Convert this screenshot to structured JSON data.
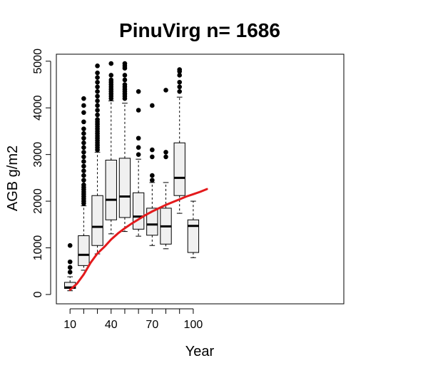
{
  "chart_data": {
    "type": "boxplot",
    "title": "PinuVirg n= 1686",
    "xlabel": "Year",
    "ylabel": "AGB g/m2",
    "xlim": [
      0,
      210
    ],
    "ylim": [
      -200,
      5150
    ],
    "x_ticks": [
      10,
      20,
      30,
      40,
      50,
      60,
      70,
      80,
      90,
      100
    ],
    "x_tick_labels": [
      "10",
      "",
      "",
      "40",
      "",
      "",
      "70",
      "",
      "",
      "100"
    ],
    "y_ticks": [
      0,
      1000,
      2000,
      3000,
      4000,
      5000
    ],
    "y_tick_labels": [
      "0",
      "1000",
      "2000",
      "3000",
      "4000",
      "5000"
    ],
    "boxes": [
      {
        "x": 10,
        "whisker_low": 80,
        "q1": 130,
        "median": 150,
        "q3": 260,
        "whisker_high": 380,
        "outliers": [
          480,
          580,
          700,
          1050
        ]
      },
      {
        "x": 20,
        "whisker_low": 520,
        "q1": 620,
        "median": 850,
        "q3": 1260,
        "whisker_high": 1900,
        "outliers": [
          1950,
          2000,
          2050,
          2100,
          2150,
          2200,
          2250,
          2300,
          2350,
          2450,
          2550,
          2650,
          2750,
          2850,
          2950,
          3050,
          3150,
          3250,
          3350,
          3450,
          3550,
          3700,
          3900,
          4050,
          4200
        ]
      },
      {
        "x": 30,
        "whisker_low": 870,
        "q1": 1050,
        "median": 1450,
        "q3": 2120,
        "whisker_high": 3050,
        "outliers": [
          3100,
          3150,
          3200,
          3250,
          3300,
          3350,
          3400,
          3450,
          3500,
          3550,
          3600,
          3650,
          3700,
          3750,
          3850,
          3950,
          4050,
          4150,
          4250,
          4350,
          4450,
          4550,
          4650,
          4750,
          4900
        ]
      },
      {
        "x": 40,
        "whisker_low": 1300,
        "q1": 1600,
        "median": 2030,
        "q3": 2880,
        "whisker_high": 4150,
        "outliers": [
          4200,
          4250,
          4300,
          4350,
          4400,
          4450,
          4500,
          4550,
          4600,
          4700,
          4950
        ]
      },
      {
        "x": 50,
        "whisker_low": 1350,
        "q1": 1650,
        "median": 2100,
        "q3": 2920,
        "whisker_high": 4100,
        "outliers": [
          4200,
          4250,
          4300,
          4350,
          4400,
          4450,
          4500,
          4600,
          4700,
          4850,
          4900,
          4950
        ]
      },
      {
        "x": 60,
        "whisker_low": 1250,
        "q1": 1400,
        "median": 1670,
        "q3": 2180,
        "whisker_high": 2900,
        "outliers": [
          3000,
          3150,
          3350,
          3950,
          4350
        ]
      },
      {
        "x": 70,
        "whisker_low": 1050,
        "q1": 1270,
        "median": 1500,
        "q3": 1850,
        "whisker_high": 2400,
        "outliers": [
          2450,
          2550,
          2950,
          3100,
          4050
        ]
      },
      {
        "x": 80,
        "whisker_low": 980,
        "q1": 1080,
        "median": 1460,
        "q3": 1850,
        "whisker_high": 2400,
        "outliers": [
          2950,
          3050,
          4380
        ]
      },
      {
        "x": 90,
        "whisker_low": 1740,
        "q1": 2120,
        "median": 2500,
        "q3": 3250,
        "whisker_high": 4230,
        "outliers": [
          4350,
          4450,
          4550,
          4700,
          4780,
          4820
        ]
      },
      {
        "x": 100,
        "whisker_low": 790,
        "q1": 900,
        "median": 1470,
        "q3": 1600,
        "whisker_high": 2000,
        "outliers": []
      }
    ],
    "fit_line": {
      "color": "#e31a1c",
      "x": [
        10,
        15,
        20,
        25,
        30,
        35,
        40,
        45,
        50,
        55,
        60,
        65,
        70,
        75,
        80,
        85,
        90,
        95,
        100,
        105,
        110
      ],
      "y": [
        100,
        230,
        430,
        680,
        880,
        1020,
        1180,
        1310,
        1420,
        1520,
        1610,
        1700,
        1780,
        1850,
        1920,
        1980,
        2040,
        2100,
        2150,
        2200,
        2260
      ]
    },
    "box_fill": "#f0f0f0",
    "grid": false
  }
}
